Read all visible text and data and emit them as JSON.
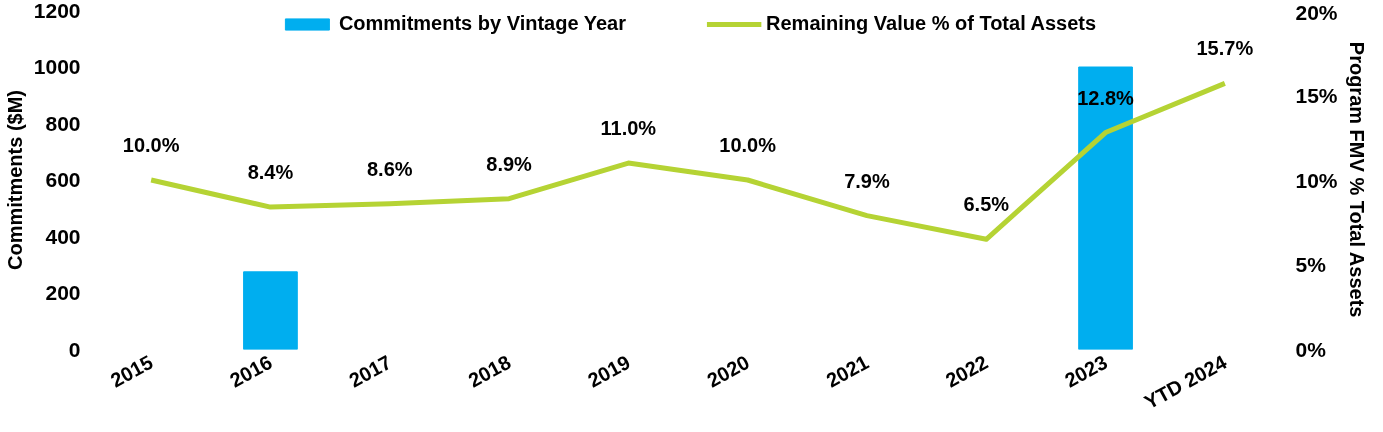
{
  "chart_data": {
    "type": "bar",
    "categories": [
      "2015",
      "2016",
      "2017",
      "2018",
      "2019",
      "2020",
      "2021",
      "2022",
      "2023",
      "YTD 2024"
    ],
    "ylabel": "Commitments ($M)",
    "y2label": "Program FMV % Total Assets",
    "ylim": [
      0,
      1200
    ],
    "yticks": [
      0,
      200,
      400,
      600,
      800,
      1000,
      1200
    ],
    "y2lim": [
      0,
      20
    ],
    "y2ticks": [
      {
        "value": 0,
        "label": "0%"
      },
      {
        "value": 5,
        "label": "5%"
      },
      {
        "value": 10,
        "label": "10%"
      },
      {
        "value": 15,
        "label": "15%"
      },
      {
        "value": 20,
        "label": "20%"
      }
    ],
    "series": [
      {
        "name": "Commitments by Vintage Year",
        "color": "#00aeef",
        "values": [
          null,
          275,
          null,
          null,
          null,
          null,
          null,
          null,
          1000,
          null
        ]
      },
      {
        "name": "Remaining Value % of Total Assets",
        "type": "line",
        "axis": "y2",
        "color": "#b5d334",
        "values": [
          10.0,
          8.4,
          8.6,
          8.9,
          11.0,
          10.0,
          7.9,
          6.5,
          12.8,
          15.7
        ],
        "value_labels": [
          "10.0%",
          "8.4%",
          "8.6%",
          "8.9%",
          "11.0%",
          "10.0%",
          "7.9%",
          "6.5%",
          "12.8%",
          "15.7%"
        ]
      }
    ],
    "legend": "top",
    "grid": false
  }
}
